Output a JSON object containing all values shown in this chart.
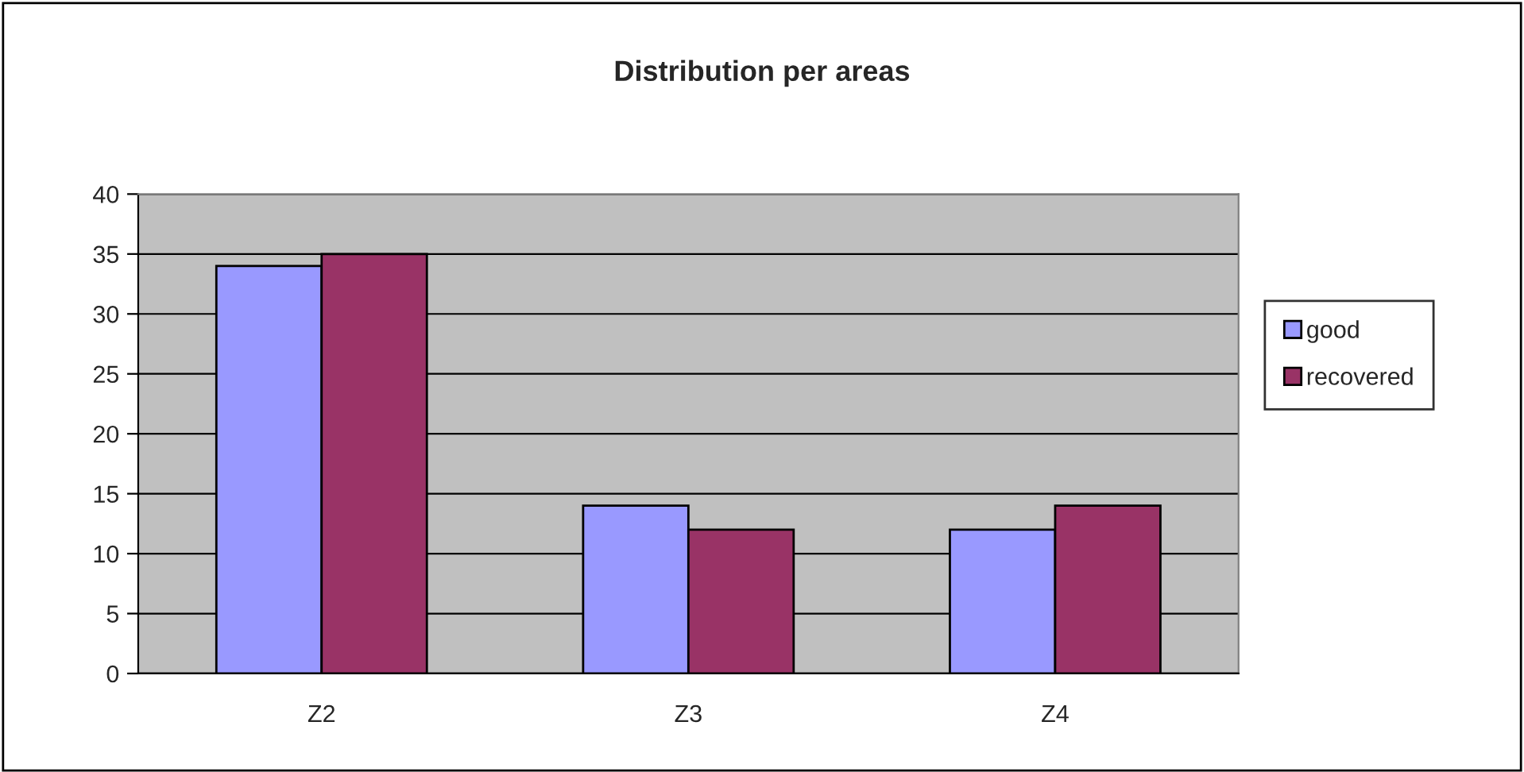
{
  "chart_data": {
    "type": "bar",
    "title": "Distribution per areas",
    "categories": [
      "Z2",
      "Z3",
      "Z4"
    ],
    "series": [
      {
        "name": "good",
        "color": "#9999ff",
        "values": [
          34,
          14,
          12
        ]
      },
      {
        "name": "recovered",
        "color": "#993366",
        "values": [
          35,
          12,
          14
        ]
      }
    ],
    "ylim": [
      0,
      40
    ],
    "yticks": [
      0,
      5,
      10,
      15,
      20,
      25,
      30,
      35,
      40
    ],
    "grid": "y",
    "legend": "right"
  }
}
